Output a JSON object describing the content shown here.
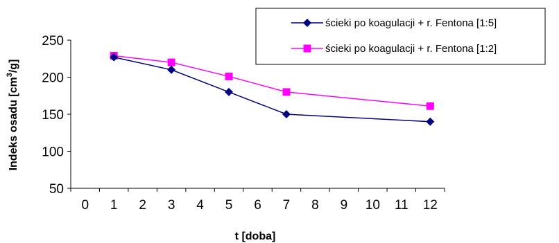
{
  "chart_data": {
    "type": "line",
    "x": [
      "0",
      "1",
      "2",
      "3",
      "4",
      "5",
      "6",
      "7",
      "8",
      "9",
      "10",
      "11",
      "12"
    ],
    "series": [
      {
        "name": "ścieki po koagulacji + r. Fentona [1:5]",
        "color": "#000080",
        "marker": "diamond",
        "points": [
          {
            "x": "1",
            "y": 227
          },
          {
            "x": "3",
            "y": 210
          },
          {
            "x": "5",
            "y": 180
          },
          {
            "x": "7",
            "y": 150
          },
          {
            "x": "12",
            "y": 140
          }
        ]
      },
      {
        "name": "ścieki po koagulacji + r. Fentona [1:2]",
        "color": "#FF00FF",
        "marker": "square",
        "points": [
          {
            "x": "1",
            "y": 229
          },
          {
            "x": "3",
            "y": 220
          },
          {
            "x": "5",
            "y": 201
          },
          {
            "x": "7",
            "y": 180
          },
          {
            "x": "12",
            "y": 161
          }
        ]
      }
    ],
    "xlabel": "t [doba]",
    "ylabel": {
      "prefix": "Indeks osadu [cm",
      "sup": "3",
      "suffix": "/g]"
    },
    "yticks": [
      50,
      100,
      150,
      200,
      250
    ],
    "ylim": [
      50,
      250
    ],
    "grid": false,
    "legend_position": "top-right"
  }
}
